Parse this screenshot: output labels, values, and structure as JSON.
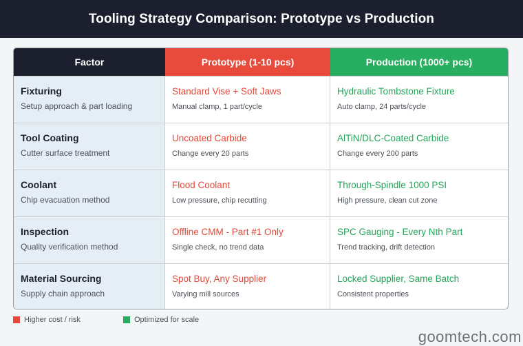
{
  "title": "Tooling Strategy Comparison: Prototype vs Production",
  "headers": {
    "factor": "Factor",
    "prototype": "Prototype (1-10 pcs)",
    "production": "Production (1000+ pcs)"
  },
  "colors": {
    "dark": "#1c1f2e",
    "prototype": "#e84b3c",
    "production": "#27ae60",
    "factor_bg": "#e6eef5"
  },
  "rows": [
    {
      "factor": "Fixturing",
      "factor_desc": "Setup approach & part loading",
      "prototype": "Standard Vise + Soft Jaws",
      "prototype_sub": "Manual clamp, 1 part/cycle",
      "production": "Hydraulic Tombstone Fixture",
      "production_sub": "Auto clamp, 24 parts/cycle"
    },
    {
      "factor": "Tool Coating",
      "factor_desc": "Cutter surface treatment",
      "prototype": "Uncoated Carbide",
      "prototype_sub": "Change every 20 parts",
      "production": "AlTiN/DLC-Coated Carbide",
      "production_sub": "Change every 200 parts"
    },
    {
      "factor": "Coolant",
      "factor_desc": "Chip evacuation method",
      "prototype": "Flood Coolant",
      "prototype_sub": "Low pressure, chip recutting",
      "production": "Through-Spindle 1000 PSI",
      "production_sub": "High pressure, clean cut zone"
    },
    {
      "factor": "Inspection",
      "factor_desc": "Quality verification method",
      "prototype": "Offline CMM - Part #1 Only",
      "prototype_sub": "Single check, no trend data",
      "production": "SPC Gauging - Every Nth Part",
      "production_sub": "Trend tracking, drift detection"
    },
    {
      "factor": "Material Sourcing",
      "factor_desc": "Supply chain approach",
      "prototype": "Spot Buy, Any Supplier",
      "prototype_sub": "Varying mill sources",
      "production": "Locked Supplier, Same Batch",
      "production_sub": "Consistent properties"
    }
  ],
  "legend": {
    "prototype_label": "Higher cost / risk",
    "production_label": "Optimized for scale"
  },
  "watermark": "goomtech.com"
}
